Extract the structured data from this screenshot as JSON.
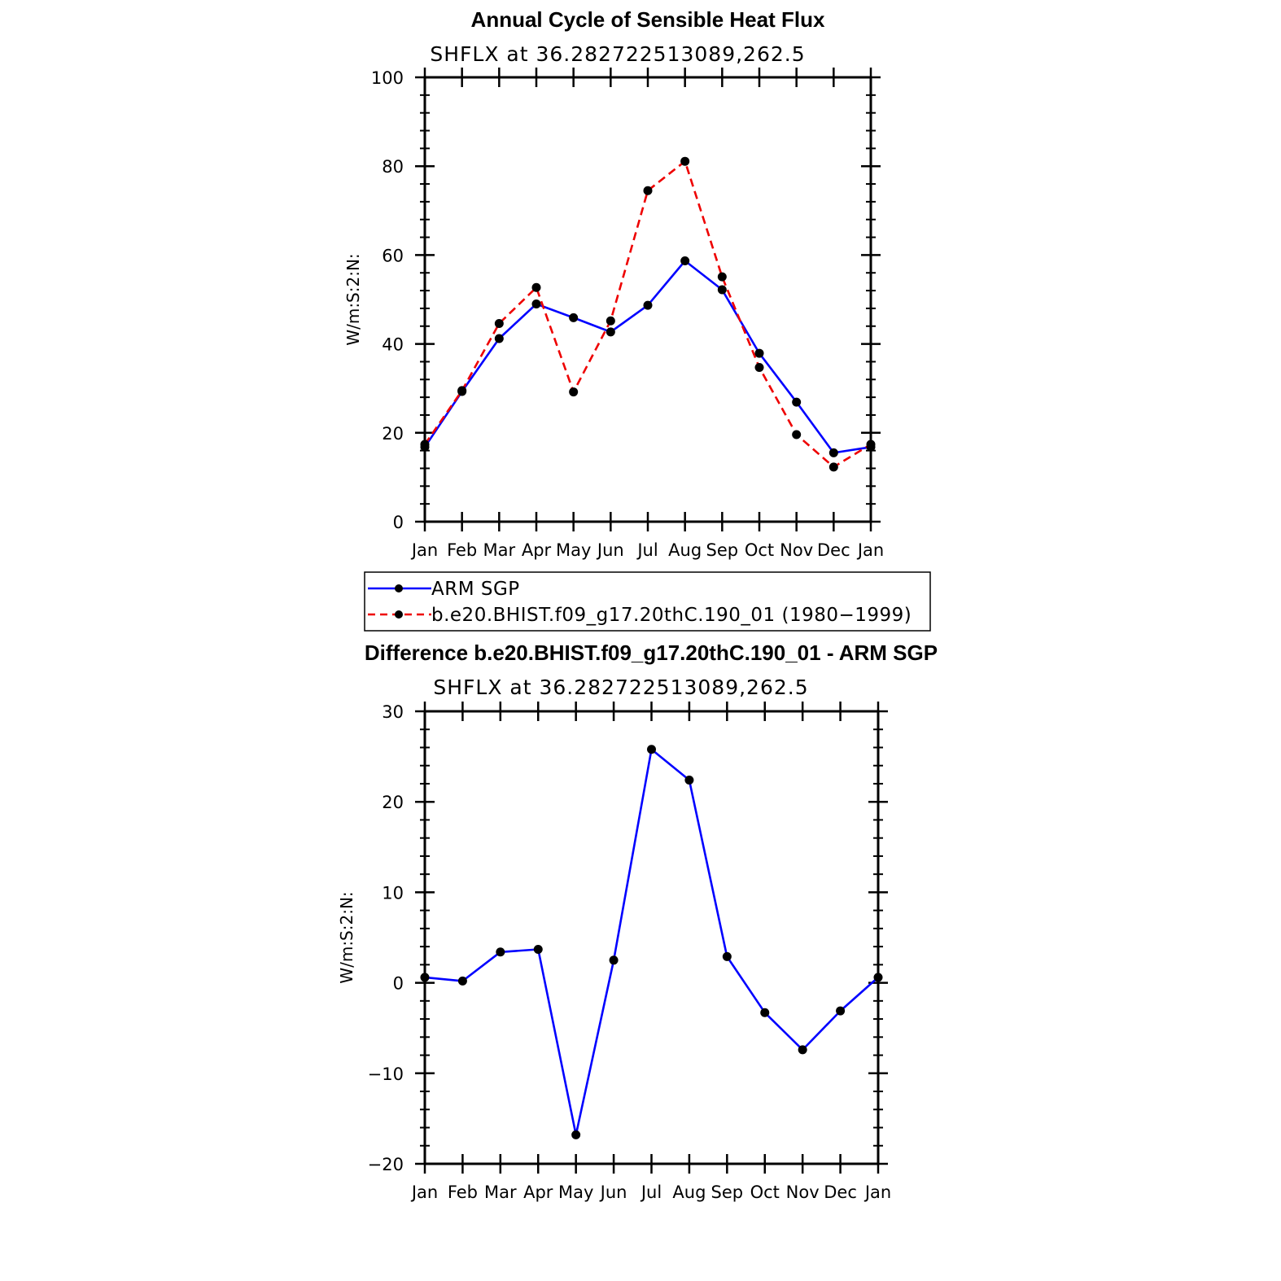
{
  "chart_data": [
    {
      "type": "line",
      "title": "Annual Cycle of Sensible Heat Flux",
      "subtitle": "SHFLX  at  36.282722513089,262.5",
      "ylabel": "W/m:S:2:N:",
      "xlabel": "",
      "categories": [
        "Jan",
        "Feb",
        "Mar",
        "Apr",
        "May",
        "Jun",
        "Jul",
        "Aug",
        "Sep",
        "Oct",
        "Nov",
        "Dec",
        "Jan"
      ],
      "ylim": [
        0,
        100
      ],
      "yticks": [
        "0",
        "20",
        "40",
        "60",
        "80",
        "100"
      ],
      "series": [
        {
          "name": "ARM  SGP",
          "color": "#0000ff",
          "dash": "solid",
          "values": [
            16.8,
            29.3,
            41.2,
            49.0,
            45.9,
            42.7,
            48.7,
            58.7,
            52.2,
            37.9,
            26.9,
            15.5,
            16.8
          ]
        },
        {
          "name": "b.e20.BHIST.f09_g17.20thC.190_01  (1980−1999)",
          "color": "#ee0000",
          "dash": "dashed",
          "values": [
            17.4,
            29.5,
            44.6,
            52.7,
            29.2,
            45.2,
            74.5,
            81.1,
            55.1,
            34.7,
            19.6,
            12.3,
            17.4
          ]
        }
      ],
      "legend": {
        "position": "below",
        "items": [
          "ARM  SGP",
          "b.e20.BHIST.f09_g17.20thC.190_01  (1980−1999)"
        ]
      }
    },
    {
      "type": "line",
      "title": "Difference b.e20.BHIST.f09_g17.20thC.190_01 - ARM SGP",
      "subtitle": "SHFLX  at  36.282722513089,262.5",
      "ylabel": "W/m:S:2:N:",
      "xlabel": "",
      "categories": [
        "Jan",
        "Feb",
        "Mar",
        "Apr",
        "May",
        "Jun",
        "Jul",
        "Aug",
        "Sep",
        "Oct",
        "Nov",
        "Dec",
        "Jan"
      ],
      "ylim": [
        -20,
        30
      ],
      "yticks": [
        "−20",
        "−10",
        "0",
        "10",
        "20",
        "30"
      ],
      "series": [
        {
          "name": "Difference",
          "color": "#0000ff",
          "dash": "solid",
          "values": [
            0.6,
            0.2,
            3.4,
            3.7,
            -16.8,
            2.5,
            25.8,
            22.4,
            2.9,
            -3.3,
            -7.4,
            -3.1,
            0.6
          ]
        }
      ]
    }
  ]
}
